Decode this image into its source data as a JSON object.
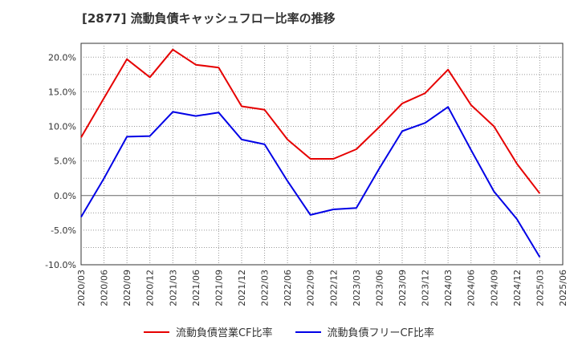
{
  "title": "[2877]  流動負債キャッシュフロー比率の推移",
  "chart_data": {
    "type": "line",
    "x": [
      "2020/03",
      "2020/06",
      "2020/09",
      "2020/12",
      "2021/03",
      "2021/06",
      "2021/09",
      "2021/12",
      "2022/03",
      "2022/06",
      "2022/09",
      "2022/12",
      "2023/03",
      "2023/06",
      "2023/09",
      "2023/12",
      "2024/03",
      "2024/06",
      "2024/09",
      "2024/12",
      "2025/03",
      "2025/06"
    ],
    "y_ticks": [
      "20.0%",
      "15.0%",
      "10.0%",
      "5.0%",
      "0.0%",
      "-5.0%",
      "-10.0%"
    ],
    "ylim": [
      -10,
      22
    ],
    "grid": true,
    "legend_position": "bottom",
    "series": [
      {
        "name": "流動負債営業CF比率",
        "color": "#e60000",
        "values": [
          8.4,
          14.1,
          19.7,
          17.1,
          21.1,
          18.9,
          18.5,
          12.9,
          12.4,
          8.1,
          5.3,
          5.3,
          6.7,
          9.9,
          13.3,
          14.8,
          18.2,
          13.1,
          10.0,
          4.6,
          0.3,
          null
        ]
      },
      {
        "name": "流動負債フリーCF比率",
        "color": "#0000e6",
        "values": [
          -3.1,
          2.5,
          8.5,
          8.6,
          12.1,
          11.5,
          12.0,
          8.1,
          7.4,
          2.1,
          -2.8,
          -2.0,
          -1.8,
          3.9,
          9.3,
          10.5,
          12.8,
          6.6,
          0.6,
          -3.4,
          -8.9,
          null
        ]
      }
    ]
  }
}
